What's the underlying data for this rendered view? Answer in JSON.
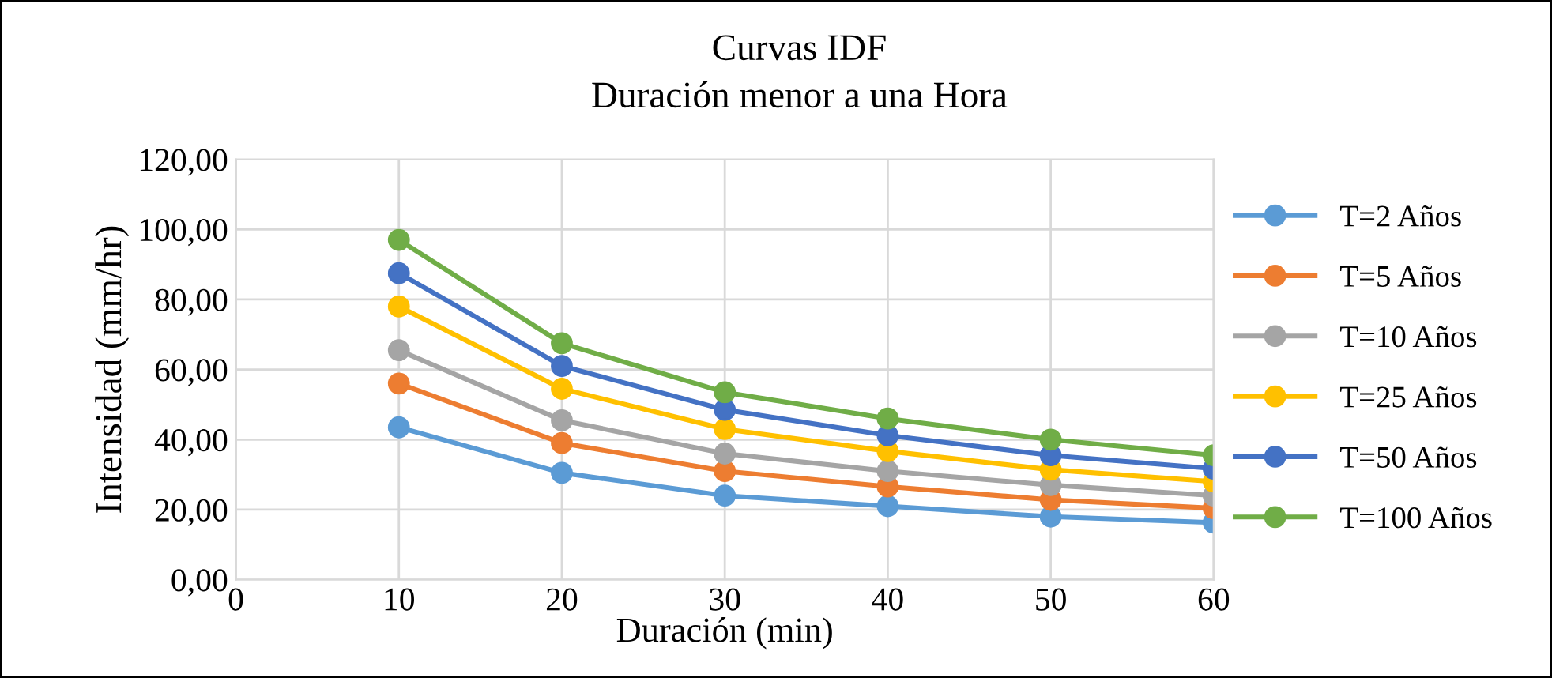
{
  "chart_data": {
    "type": "line",
    "title": "Curvas IDF",
    "subtitle": "Duración menor a una Hora",
    "xlabel": "Duración (min)",
    "ylabel": "Intensidad (mm/hr)",
    "x": [
      10,
      20,
      30,
      40,
      50,
      60
    ],
    "series": [
      {
        "name": "T=2 Años",
        "color": "#5b9bd5",
        "values": [
          43.5,
          30.5,
          24,
          21,
          18,
          16.3
        ]
      },
      {
        "name": "T=5 Años",
        "color": "#ed7d31",
        "values": [
          56,
          39,
          31,
          26.6,
          22.8,
          20.4
        ]
      },
      {
        "name": "T=10 Años",
        "color": "#a5a5a5",
        "values": [
          65.5,
          45.5,
          36,
          31,
          27,
          24
        ]
      },
      {
        "name": "T=25 Años",
        "color": "#ffc000",
        "values": [
          78,
          54.5,
          43,
          36.7,
          31.4,
          28
        ]
      },
      {
        "name": "T=50 Años",
        "color": "#4472c4",
        "values": [
          87.5,
          61,
          48.5,
          41.2,
          35.5,
          31.7
        ]
      },
      {
        "name": "T=100 Años",
        "color": "#70ad47",
        "values": [
          97,
          67.5,
          53.5,
          46,
          40,
          35.5
        ]
      }
    ],
    "xlim": [
      0,
      60
    ],
    "xticks": [
      0,
      10,
      20,
      30,
      40,
      50,
      60
    ],
    "ylim": [
      0,
      120
    ],
    "yticks": [
      {
        "value": 0,
        "label": "0,00"
      },
      {
        "value": 20,
        "label": "20,00"
      },
      {
        "value": 40,
        "label": "40,00"
      },
      {
        "value": 60,
        "label": "60,00"
      },
      {
        "value": 80,
        "label": "80,00"
      },
      {
        "value": 100,
        "label": "100,00"
      },
      {
        "value": 120,
        "label": "120,00"
      }
    ],
    "grid": true,
    "legend": "right",
    "marker": "circle",
    "line_style": "solid"
  }
}
